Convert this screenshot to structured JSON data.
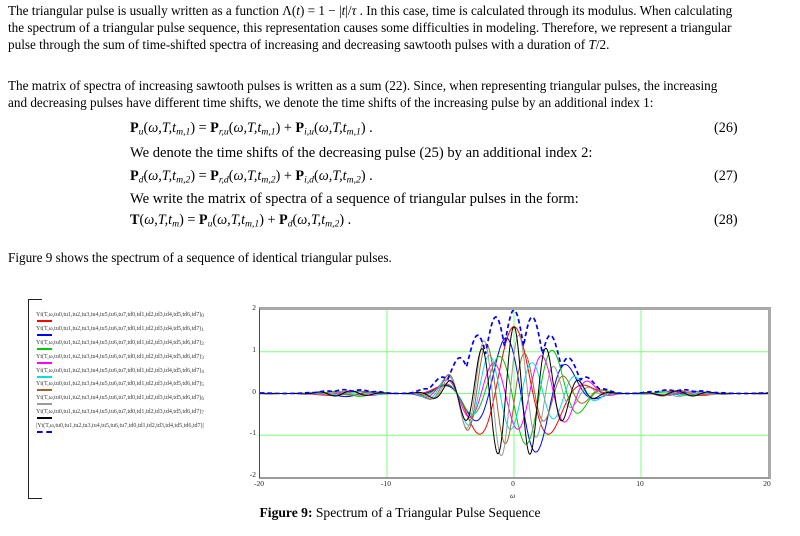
{
  "paragraphs": {
    "p1": [
      {
        "t": "The triangular pulse is usually written as a function Λ("
      },
      {
        "t": "t",
        "i": 1
      },
      {
        "t": ") = 1 − |"
      },
      {
        "t": "t",
        "i": 1
      },
      {
        "t": "|/"
      },
      {
        "t": "τ",
        "i": 1
      },
      {
        "t": " . In this case, time is calculated through its modulus. When calculating"
      },
      {
        "br": 1
      },
      {
        "t": "the spectrum of a triangular pulse sequence, this representation causes some difficulties in modeling. Therefore, we represent a triangular"
      },
      {
        "br": 1
      },
      {
        "t": "pulse through the sum of time-shifted spectra of increasing and decreasing sawtooth pulses with a duration of "
      },
      {
        "t": "T",
        "i": 1
      },
      {
        "t": "/2."
      }
    ],
    "p2": [
      {
        "t": "The matrix of spectra of increasing sawtooth pulses is written as a sum (22). Since, when representing triangular pulses, the increasing"
      },
      {
        "br": 1
      },
      {
        "t": "and decreasing pulses have different time shifts, we denote the time shifts of the increasing pulse by an additional index 1:"
      }
    ],
    "p3": [
      {
        "t": "Figure 9 shows the spectrum of a sequence of identical triangular pulses."
      }
    ]
  },
  "equations": {
    "eq26": {
      "number": "(26)",
      "body": [
        {
          "t": "P",
          "b": 1
        },
        {
          "t": "u",
          "sub": 1,
          "i": 1
        },
        {
          "t": "("
        },
        {
          "t": "ω,T,t",
          "i": 1
        },
        {
          "t": "m,1",
          "sub": 1,
          "i": 1
        },
        {
          "t": ") = "
        },
        {
          "t": "P",
          "b": 1
        },
        {
          "t": "r,u",
          "sub": 1,
          "i": 1
        },
        {
          "t": "("
        },
        {
          "t": "ω,T,t",
          "i": 1
        },
        {
          "t": "m,1",
          "sub": 1,
          "i": 1
        },
        {
          "t": ") + "
        },
        {
          "t": "P",
          "b": 1
        },
        {
          "t": "i,u",
          "sub": 1,
          "i": 1
        },
        {
          "t": "("
        },
        {
          "t": "ω,T,t",
          "i": 1
        },
        {
          "t": "m,1",
          "sub": 1,
          "i": 1
        },
        {
          "t": ") ."
        }
      ]
    },
    "between_26_27": [
      {
        "t": "We denote the time shifts of the decreasing pulse (25) by an additional index 2:"
      }
    ],
    "eq27": {
      "number": "(27)",
      "body": [
        {
          "t": "P",
          "b": 1
        },
        {
          "t": "d",
          "sub": 1,
          "i": 1
        },
        {
          "t": "("
        },
        {
          "t": "ω,T,t",
          "i": 1
        },
        {
          "t": "m,2",
          "sub": 1,
          "i": 1
        },
        {
          "t": ") = "
        },
        {
          "t": "P",
          "b": 1
        },
        {
          "t": "r,d",
          "sub": 1,
          "i": 1
        },
        {
          "t": "("
        },
        {
          "t": "ω,T,t",
          "i": 1
        },
        {
          "t": "m,2",
          "sub": 1,
          "i": 1
        },
        {
          "t": ") + "
        },
        {
          "t": "P",
          "b": 1
        },
        {
          "t": "i,d",
          "sub": 1,
          "i": 1
        },
        {
          "t": "("
        },
        {
          "t": "ω,T,t",
          "i": 1
        },
        {
          "t": "m,2",
          "sub": 1,
          "i": 1
        },
        {
          "t": ") ."
        }
      ]
    },
    "between_27_28": [
      {
        "t": "We write the matrix of spectra of a sequence of triangular pulses in the form:"
      }
    ],
    "eq28": {
      "number": "(28)",
      "body": [
        {
          "t": "T",
          "b": 1
        },
        {
          "t": "("
        },
        {
          "t": "ω,T,t",
          "i": 1
        },
        {
          "t": "m",
          "sub": 1,
          "i": 1
        },
        {
          "t": ") = "
        },
        {
          "t": "P",
          "b": 1
        },
        {
          "t": "u",
          "sub": 1,
          "i": 1
        },
        {
          "t": "("
        },
        {
          "t": "ω,T,t",
          "i": 1
        },
        {
          "t": "m,1",
          "sub": 1,
          "i": 1
        },
        {
          "t": ") + "
        },
        {
          "t": "P",
          "b": 1
        },
        {
          "t": "d",
          "sub": 1,
          "i": 1
        },
        {
          "t": "("
        },
        {
          "t": "ω,T,t",
          "i": 1
        },
        {
          "t": "m,2",
          "sub": 1,
          "i": 1
        },
        {
          "t": ") ."
        }
      ]
    }
  },
  "figure": {
    "caption_label": "Figure 9:",
    "caption_text": " Spectrum of a Triangular Pulse Sequence",
    "legend": {
      "base_expr": "Yt(T,ω,tu0,tu1,tu2,tu3,tu4,tu5,tu6,tu7,td0,td1,td2,td3,td4,td5,td6,td7)",
      "entries": [
        {
          "index": "0",
          "color": "#ff0000",
          "dashed": false,
          "abs": false
        },
        {
          "index": "1",
          "color": "#0000ff",
          "dashed": false,
          "abs": false
        },
        {
          "index": "2",
          "color": "#00c800",
          "dashed": false,
          "abs": false
        },
        {
          "index": "3",
          "color": "#ff00ff",
          "dashed": false,
          "abs": false
        },
        {
          "index": "4",
          "color": "#00e0e0",
          "dashed": false,
          "abs": false
        },
        {
          "index": "5",
          "color": "#a2642c",
          "dashed": false,
          "abs": false
        },
        {
          "index": "6",
          "color": "#9a9a9a",
          "dashed": false,
          "abs": false
        },
        {
          "index": "7",
          "color": "#000000",
          "dashed": false,
          "abs": false
        },
        {
          "index": "",
          "color": "#0000ee",
          "dashed": true,
          "abs": true
        }
      ]
    }
  },
  "chart_data": {
    "type": "line",
    "title": "",
    "xlabel": "ω",
    "ylabel": "",
    "xlim": [
      -20,
      20
    ],
    "ylim": [
      -2,
      2
    ],
    "x_ticks": [
      "-20",
      "-10",
      "0",
      "10",
      "20"
    ],
    "x_tick_values": [
      -20,
      -10,
      0,
      10,
      20
    ],
    "y_ticks": [
      "2",
      "1",
      "0",
      "-1",
      "-2"
    ],
    "y_tick_values": [
      2,
      1,
      0,
      -1,
      -2
    ],
    "x_gridlines": [
      -10,
      0,
      10
    ],
    "y_gridlines": [
      1,
      0,
      -1
    ],
    "grid_color": "#7dff7d",
    "legend_position": "left",
    "description": "Spectra of eight time-shifted triangular pulse components (solid traces, amplitudes up to ~1.6, concentrated in |ω|<9) and the dashed blue magnitude envelope |Yt| peaking at ~2 near ω=0 with ripple humps spaced ~1.5 rad/s, decaying side lobes out to |ω|=20",
    "envelope": {
      "name": "|Yt(T,ω,tu0..tu7,td0..td7)|",
      "color": "#0000ee",
      "style": "dashed",
      "peak": 2,
      "sinc_scale": 0.349,
      "ripple_floor": 0.58,
      "ripple_freq": 2.1
    },
    "series": [
      {
        "name": "Yt(T,ω,tu0..td7)0",
        "color": "#ff0000",
        "freq": 1.05,
        "phase": 0.0
      },
      {
        "name": "Yt(T,ω,tu0..td7)1",
        "color": "#0000ff",
        "freq": 1.25,
        "phase": 0.9
      },
      {
        "name": "Yt(T,ω,tu0..td7)2",
        "color": "#00c800",
        "freq": 1.45,
        "phase": 1.8
      },
      {
        "name": "Yt(T,ω,tu0..td7)3",
        "color": "#ff00ff",
        "freq": 1.65,
        "phase": 2.7
      },
      {
        "name": "Yt(T,ω,tu0..td7)4",
        "color": "#00e0e0",
        "freq": 1.85,
        "phase": 3.6
      },
      {
        "name": "Yt(T,ω,tu0..td7)5",
        "color": "#a2642c",
        "freq": 2.05,
        "phase": 4.5
      },
      {
        "name": "Yt(T,ω,tu0..td7)6",
        "color": "#9a9a9a",
        "freq": 2.25,
        "phase": 5.4
      },
      {
        "name": "Yt(T,ω,tu0..td7)7",
        "color": "#000000",
        "freq": 2.45,
        "phase": 6.3
      }
    ],
    "solid_amp": 0.8,
    "mod_freq": 0.4,
    "mod_depth": 0.25
  }
}
